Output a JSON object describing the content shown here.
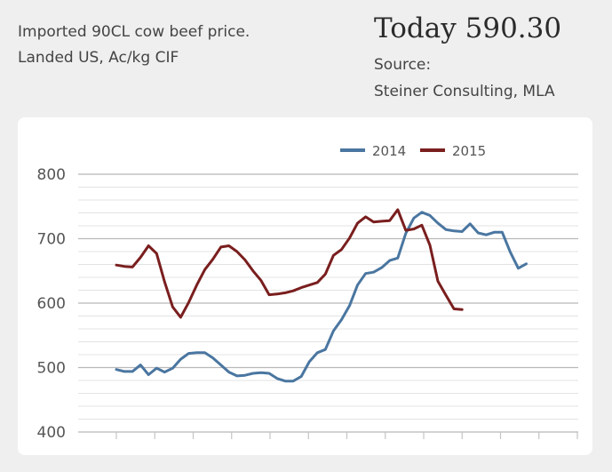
{
  "header": {
    "subtitle_line1": "Imported 90CL cow beef price.",
    "subtitle_line2": "Landed US, Ac/kg CIF",
    "today_label": "Today",
    "today_value": "590.30",
    "source_label": "Source:",
    "source_text": "Steiner Consulting, MLA"
  },
  "chart_data": {
    "type": "line",
    "title": "",
    "xlabel": "",
    "ylabel": "",
    "ylim": [
      400,
      800
    ],
    "yticks": [
      400,
      500,
      600,
      700,
      800
    ],
    "grid": true,
    "legend_position": "top",
    "x_periods": 52,
    "series": [
      {
        "name": "2014",
        "color": "#4a76a0",
        "x": [
          1,
          2,
          3,
          4,
          5,
          6,
          7,
          8,
          9,
          10,
          11,
          12,
          13,
          14,
          15,
          16,
          17,
          18,
          19,
          20,
          21,
          22,
          23,
          24,
          25,
          26,
          27,
          28,
          29,
          30,
          31,
          32,
          33,
          34,
          35,
          36,
          37,
          38,
          39,
          40,
          41,
          42,
          43,
          44,
          45,
          46,
          47,
          48,
          49,
          50,
          51,
          52
        ],
        "values": [
          497,
          494,
          494,
          504,
          489,
          499,
          493,
          499,
          513,
          522,
          523,
          523,
          515,
          504,
          493,
          487,
          488,
          491,
          492,
          491,
          483,
          479,
          479,
          486,
          509,
          523,
          528,
          557,
          574,
          596,
          628,
          646,
          648,
          655,
          666,
          670,
          708,
          732,
          741,
          736,
          724,
          714,
          712,
          711,
          723,
          709,
          706,
          710,
          710,
          679,
          654,
          661
        ]
      },
      {
        "name": "2015",
        "color": "#7a1e1e",
        "x": [
          1,
          2,
          3,
          4,
          5,
          6,
          7,
          8,
          9,
          10,
          11,
          12,
          13,
          14,
          15,
          16,
          17,
          18,
          19,
          20,
          21,
          22,
          23,
          24,
          25,
          26,
          27,
          28,
          29,
          30,
          31,
          32,
          33,
          34,
          35,
          36,
          37,
          38,
          39,
          40,
          41,
          42,
          43,
          44
        ],
        "values": [
          659,
          657,
          656,
          671,
          689,
          677,
          633,
          594,
          578,
          601,
          628,
          652,
          668,
          687,
          689,
          680,
          667,
          650,
          635,
          613,
          614,
          616,
          619,
          624,
          628,
          632,
          645,
          674,
          683,
          701,
          724,
          734,
          726,
          727,
          728,
          745,
          713,
          715,
          721,
          690,
          634,
          612,
          591,
          590
        ]
      }
    ]
  }
}
